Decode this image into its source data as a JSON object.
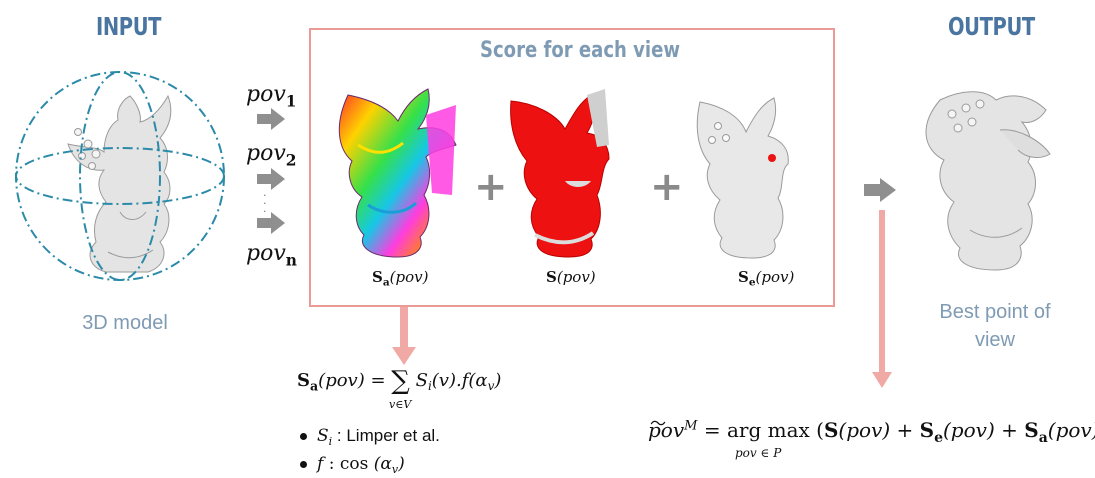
{
  "input_panel": {
    "heading": "INPUT",
    "caption": "3D model"
  },
  "output_panel": {
    "heading": "OUTPUT",
    "caption_line1": "Best point of",
    "caption_line2": "view"
  },
  "score_panel": {
    "title": "Score for each view"
  },
  "views": {
    "pov": "pov",
    "sub1": "1",
    "sub2": "2",
    "subn": "n",
    "dots": "·  ·  ·"
  },
  "scores": {
    "sa": {
      "S": "S",
      "sub": "a",
      "arg": "(pov)"
    },
    "s": {
      "S": "S",
      "arg": "(pov)"
    },
    "se": {
      "S": "S",
      "sub": "e",
      "arg": "(pov)"
    },
    "plus": "+"
  },
  "formula_sa": {
    "lhs_S": "S",
    "lhs_sub": "a",
    "lhs_arg": "(pov) =",
    "sum": "∑",
    "sum_range": "v∈V",
    "body": "S",
    "body_sub": "i",
    "body_rest": "(v).f(α",
    "body_sub2": "v",
    "body_end": ")"
  },
  "legend": {
    "si_symbol": "S",
    "si_sub": "i",
    "si_text": " : Limper et al.",
    "f_symbol": "f",
    "f_text": " :  cos",
    "f_arg": " (α",
    "f_sub": "v",
    "f_end": ")"
  },
  "formula_best": {
    "lhs": "pov",
    "lhs_sup": "M",
    "eq": "=",
    "op": "arg max",
    "op_range": "pov ∈ P",
    "rhs_open": "(",
    "t1": "S",
    "t1_arg": "(pov) +",
    "t2": "S",
    "t2_sub": "e",
    "t2_arg": "(pov) +",
    "t3": "S",
    "t3_sub": "a",
    "t3_arg": "(pov))"
  },
  "colors": {
    "heading": "#4a75a1",
    "caption": "#7f9bb4",
    "box_border": "#ec9a96",
    "pink_arrow": "#f1a9a5",
    "gray_arrow": "#8f8f8f"
  }
}
